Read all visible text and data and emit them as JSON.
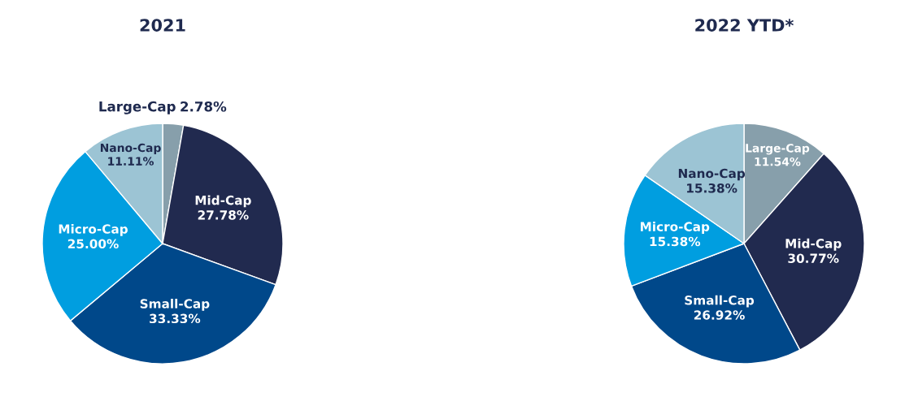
{
  "chart_data": [
    {
      "type": "pie",
      "title": "2021",
      "categories": [
        "Large-Cap",
        "Mid-Cap",
        "Small-Cap",
        "Micro-Cap",
        "Nano-Cap"
      ],
      "values": [
        2.78,
        27.78,
        33.33,
        25.0,
        11.11
      ],
      "value_labels": [
        "2.78%",
        "27.78%",
        "33.33%",
        "25.00%",
        "11.11%"
      ],
      "colors": [
        "#879fab",
        "#212a4f",
        "#00488a",
        "#009ee0",
        "#9cc4d4"
      ]
    },
    {
      "type": "pie",
      "title": "2022 YTD*",
      "categories": [
        "Large-Cap",
        "Mid-Cap",
        "Small-Cap",
        "Micro-Cap",
        "Nano-Cap"
      ],
      "values": [
        11.54,
        30.77,
        26.92,
        15.38,
        15.38
      ],
      "value_labels": [
        "11.54%",
        "30.77%",
        "26.92%",
        "15.38%",
        "15.38%"
      ],
      "colors": [
        "#879fab",
        "#212a4f",
        "#00488a",
        "#009ee0",
        "#9cc4d4"
      ]
    }
  ]
}
